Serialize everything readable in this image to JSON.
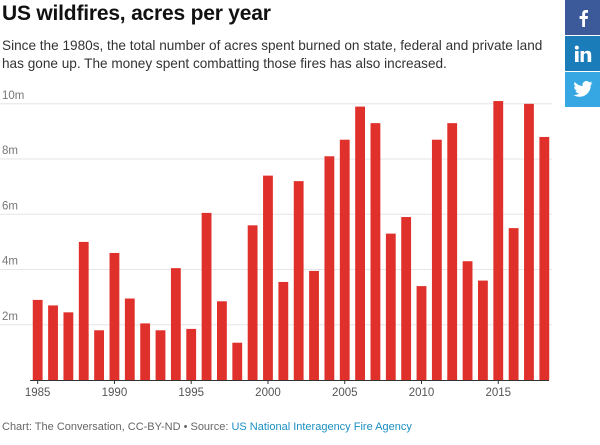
{
  "header": {
    "title": "US wildfires, acres per year",
    "subtitle": "Since the 1980s, the total number of acres spent burned on state, federal and private land has gone up. The money spent combatting those fires has also increased."
  },
  "footer": {
    "credit": "Chart: The Conversation, CC-BY-ND • Source: ",
    "source_link": "US National Interagency Fire Agency"
  },
  "social": {
    "buttons": [
      {
        "network": "facebook",
        "icon": "facebook-icon",
        "color": "#3c5a99"
      },
      {
        "network": "linkedin",
        "icon": "linkedin-icon",
        "color": "#1a7cb8"
      },
      {
        "network": "twitter",
        "icon": "twitter-icon",
        "color": "#37a7e4"
      }
    ]
  },
  "chart_data": {
    "type": "bar",
    "title": "US wildfires, acres per year",
    "xlabel": "",
    "ylabel": "",
    "bar_color": "#e0302b",
    "ylim": [
      0,
      10.5
    ],
    "y_ticks": [
      {
        "value": 2,
        "label": "2m"
      },
      {
        "value": 4,
        "label": "4m"
      },
      {
        "value": 6,
        "label": "6m"
      },
      {
        "value": 8,
        "label": "8m"
      },
      {
        "value": 10,
        "label": "10m"
      }
    ],
    "x_ticks": [
      "1985",
      "1990",
      "1995",
      "2000",
      "2005",
      "2010",
      "2015"
    ],
    "grid": true,
    "categories": [
      1985,
      1986,
      1987,
      1988,
      1989,
      1990,
      1991,
      1992,
      1993,
      1994,
      1995,
      1996,
      1997,
      1998,
      1999,
      2000,
      2001,
      2002,
      2003,
      2004,
      2005,
      2006,
      2007,
      2008,
      2009,
      2010,
      2011,
      2012,
      2013,
      2014,
      2015,
      2016,
      2017,
      2018
    ],
    "values": [
      2.9,
      2.7,
      2.45,
      5.0,
      1.8,
      4.6,
      2.95,
      2.05,
      1.8,
      4.05,
      1.85,
      6.05,
      2.85,
      1.35,
      5.6,
      7.4,
      3.55,
      7.2,
      3.95,
      8.1,
      8.7,
      9.9,
      9.3,
      5.3,
      5.9,
      3.4,
      8.7,
      9.3,
      4.3,
      3.6,
      10.1,
      5.5,
      10.0,
      8.8
    ]
  }
}
